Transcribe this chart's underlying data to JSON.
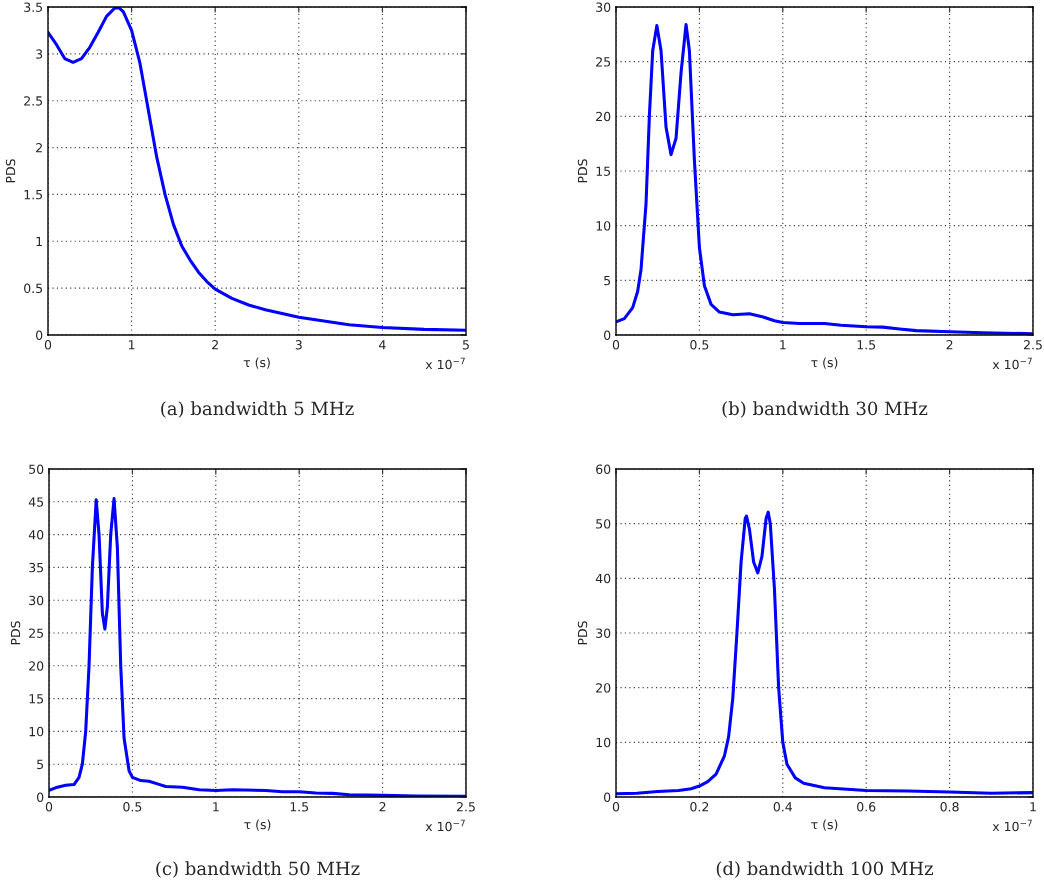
{
  "chart_data": [
    {
      "type": "line",
      "title": "(a) bandwidth 5 MHz",
      "xlabel": "τ (s)",
      "ylabel": "PDS",
      "annotations": [
        "x 10$^{−7}$"
      ],
      "grid": true,
      "xlim": [
        0,
        5
      ],
      "xticks": [
        0,
        1,
        2,
        3,
        4,
        5
      ],
      "ylim": [
        0,
        3.5
      ],
      "yticks": [
        0,
        0.5,
        1,
        1.5,
        2,
        2.5,
        3,
        3.5
      ],
      "series": [
        {
          "color": "#0000ff",
          "x": [
            0,
            0.1,
            0.2,
            0.3,
            0.4,
            0.5,
            0.6,
            0.7,
            0.8,
            0.85,
            0.9,
            1.0,
            1.1,
            1.2,
            1.3,
            1.4,
            1.5,
            1.6,
            1.7,
            1.8,
            1.9,
            2.0,
            2.2,
            2.4,
            2.6,
            2.8,
            3.0,
            3.3,
            3.6,
            4.0,
            4.5,
            5.0
          ],
          "values": [
            3.23,
            3.1,
            2.95,
            2.91,
            2.95,
            3.07,
            3.23,
            3.4,
            3.49,
            3.49,
            3.45,
            3.25,
            2.9,
            2.4,
            1.9,
            1.5,
            1.18,
            0.95,
            0.8,
            0.67,
            0.57,
            0.49,
            0.39,
            0.32,
            0.27,
            0.23,
            0.19,
            0.15,
            0.11,
            0.08,
            0.06,
            0.05
          ]
        }
      ]
    },
    {
      "type": "line",
      "title": "(b) bandwidth 30 MHz",
      "xlabel": "τ (s)",
      "ylabel": "PDS",
      "annotations": [
        "x 10$^{−7}$"
      ],
      "grid": true,
      "xlim": [
        0,
        2.5
      ],
      "xticks": [
        0,
        0.5,
        1,
        1.5,
        2,
        2.5
      ],
      "ylim": [
        0,
        30
      ],
      "yticks": [
        0,
        5,
        10,
        15,
        20,
        25,
        30
      ],
      "series": [
        {
          "color": "#0000ff",
          "x": [
            0,
            0.05,
            0.1,
            0.13,
            0.15,
            0.18,
            0.2,
            0.22,
            0.245,
            0.27,
            0.3,
            0.33,
            0.36,
            0.39,
            0.42,
            0.44,
            0.47,
            0.5,
            0.53,
            0.57,
            0.62,
            0.7,
            0.8,
            0.87,
            0.95,
            1.0,
            1.1,
            1.25,
            1.35,
            1.5,
            1.6,
            1.7,
            1.8,
            2.0,
            2.2,
            2.5
          ],
          "values": [
            1.2,
            1.5,
            2.5,
            4,
            6,
            12,
            20,
            26,
            28.3,
            26,
            19,
            16.5,
            18,
            24,
            28.4,
            26,
            16,
            8,
            4.5,
            2.8,
            2.1,
            1.85,
            1.95,
            1.7,
            1.3,
            1.15,
            1.05,
            1.05,
            0.9,
            0.75,
            0.72,
            0.55,
            0.4,
            0.3,
            0.2,
            0.12
          ]
        }
      ]
    },
    {
      "type": "line",
      "title": "(c) bandwidth 50 MHz",
      "xlabel": "τ (s)",
      "ylabel": "PDS",
      "annotations": [
        "x 10$^{−7}$"
      ],
      "grid": true,
      "xlim": [
        0,
        2.5
      ],
      "xticks": [
        0,
        0.5,
        1,
        1.5,
        2,
        2.5
      ],
      "ylim": [
        0,
        50
      ],
      "yticks": [
        0,
        5,
        10,
        15,
        20,
        25,
        30,
        35,
        40,
        45,
        50
      ],
      "series": [
        {
          "color": "#0000ff",
          "x": [
            0,
            0.05,
            0.1,
            0.15,
            0.18,
            0.2,
            0.22,
            0.24,
            0.26,
            0.283,
            0.3,
            0.32,
            0.335,
            0.35,
            0.37,
            0.39,
            0.41,
            0.43,
            0.45,
            0.48,
            0.5,
            0.55,
            0.6,
            0.65,
            0.7,
            0.8,
            0.9,
            1.0,
            1.1,
            1.3,
            1.4,
            1.5,
            1.6,
            1.7,
            1.8,
            2.0,
            2.2,
            2.5
          ],
          "values": [
            1.0,
            1.5,
            1.8,
            1.9,
            3,
            5,
            10,
            20,
            35,
            45.3,
            40,
            28,
            25.6,
            29,
            40,
            45.5,
            38,
            20,
            9,
            4,
            3,
            2.5,
            2.4,
            2.0,
            1.6,
            1.5,
            1.1,
            1.0,
            1.1,
            1.0,
            0.8,
            0.8,
            0.6,
            0.55,
            0.35,
            0.25,
            0.15,
            0.1
          ]
        }
      ]
    },
    {
      "type": "line",
      "title": "(d) bandwidth 100 MHz",
      "xlabel": "τ (s)",
      "ylabel": "PDS",
      "annotations": [
        "x 10$^{−7}$"
      ],
      "grid": true,
      "xlim": [
        0,
        1
      ],
      "xticks": [
        0,
        0.2,
        0.4,
        0.6,
        0.8,
        1
      ],
      "ylim": [
        0,
        60
      ],
      "yticks": [
        0,
        10,
        20,
        30,
        40,
        50,
        60
      ],
      "series": [
        {
          "color": "#0000ff",
          "x": [
            0,
            0.05,
            0.1,
            0.15,
            0.18,
            0.2,
            0.22,
            0.24,
            0.26,
            0.27,
            0.28,
            0.29,
            0.3,
            0.31,
            0.313,
            0.32,
            0.33,
            0.34,
            0.35,
            0.36,
            0.365,
            0.37,
            0.38,
            0.39,
            0.4,
            0.41,
            0.43,
            0.45,
            0.5,
            0.6,
            0.7,
            0.8,
            0.9,
            1.0
          ],
          "values": [
            0.6,
            0.7,
            1.0,
            1.2,
            1.5,
            2.0,
            2.8,
            4.2,
            7.5,
            11,
            18,
            30,
            43,
            51,
            51.4,
            49,
            43,
            41,
            44,
            51,
            52.1,
            50,
            38,
            20,
            10,
            6,
            3.5,
            2.5,
            1.7,
            1.2,
            1.1,
            0.9,
            0.7,
            0.8
          ]
        }
      ]
    }
  ]
}
